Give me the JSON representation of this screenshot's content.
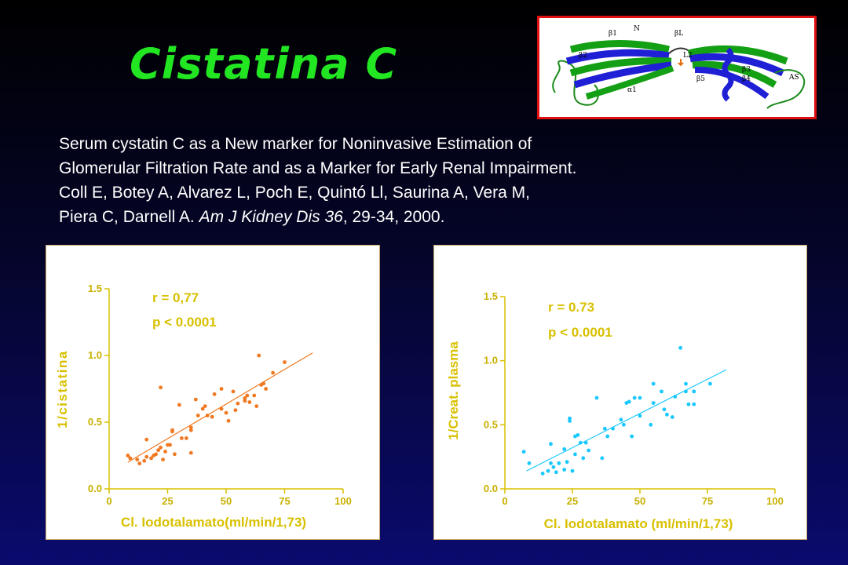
{
  "slide": {
    "title": "Cistatina C",
    "protein_labels": [
      "N",
      "β1",
      "βL",
      "β2",
      "L2",
      "β3",
      "β4",
      "β5",
      "α1",
      "AS"
    ],
    "citation": {
      "line1": "Serum cystatin C as a New marker for Noninvasive Estimation of",
      "line2": "Glomerular Filtration Rate and as a Marker for Early Renal Impairment.",
      "line3": "Coll E, Botey A, Alvarez L, Poch E, Quintó Ll, Saurina A, Vera M,",
      "line4_pre": "Piera C, Darnell A. ",
      "line4_journal": "Am J  Kidney Dis 36",
      "line4_post": ", 29-34, 2000."
    }
  },
  "colors": {
    "title": "#22e622",
    "protein_border": "#e01010",
    "left_series": "#f07820",
    "right_series": "#18c8ff"
  },
  "chart_data": [
    {
      "type": "scatter",
      "xlabel": "Cl. Iodotalamato(ml/min/1,73)",
      "ylabel": "1/cistatina",
      "annotations": [
        "r = 0,77",
        "p < 0.0001"
      ],
      "xlim": [
        0,
        100
      ],
      "ylim": [
        0,
        1.5
      ],
      "x_ticks": [
        "0",
        "25",
        "50",
        "75",
        "100"
      ],
      "y_ticks": [
        "0.0",
        "0.5",
        "1.0",
        "1.5"
      ],
      "grid": false,
      "trendline": {
        "x": [
          8,
          87
        ],
        "y": [
          0.2,
          1.02
        ]
      },
      "points": [
        [
          8,
          0.25
        ],
        [
          9,
          0.23
        ],
        [
          12,
          0.22
        ],
        [
          13,
          0.19
        ],
        [
          15,
          0.21
        ],
        [
          16,
          0.37
        ],
        [
          16,
          0.24
        ],
        [
          18,
          0.23
        ],
        [
          19,
          0.25
        ],
        [
          20,
          0.26
        ],
        [
          21,
          0.29
        ],
        [
          22,
          0.76
        ],
        [
          22,
          0.31
        ],
        [
          23,
          0.22
        ],
        [
          24,
          0.28
        ],
        [
          25,
          0.33
        ],
        [
          26,
          0.33
        ],
        [
          27,
          0.43
        ],
        [
          27,
          0.44
        ],
        [
          28,
          0.26
        ],
        [
          30,
          0.63
        ],
        [
          31,
          0.38
        ],
        [
          33,
          0.38
        ],
        [
          35,
          0.27
        ],
        [
          35,
          0.44
        ],
        [
          35,
          0.46
        ],
        [
          37,
          0.67
        ],
        [
          38,
          0.55
        ],
        [
          40,
          0.6
        ],
        [
          41,
          0.62
        ],
        [
          42,
          0.55
        ],
        [
          44,
          0.54
        ],
        [
          45,
          0.71
        ],
        [
          48,
          0.75
        ],
        [
          48,
          0.6
        ],
        [
          50,
          0.57
        ],
        [
          51,
          0.51
        ],
        [
          53,
          0.73
        ],
        [
          54,
          0.59
        ],
        [
          55,
          0.64
        ],
        [
          58,
          0.66
        ],
        [
          58,
          0.68
        ],
        [
          59,
          0.7
        ],
        [
          60,
          0.65
        ],
        [
          62,
          0.7
        ],
        [
          63,
          0.62
        ],
        [
          64,
          1.0
        ],
        [
          65,
          0.78
        ],
        [
          66,
          0.79
        ],
        [
          67,
          0.75
        ],
        [
          70,
          0.87
        ],
        [
          75,
          0.95
        ]
      ]
    },
    {
      "type": "scatter",
      "xlabel": "Cl. Iodotalamato (ml/min/1,73)",
      "ylabel": "1/Creat. plasma",
      "annotations": [
        "r = 0.73",
        "p < 0.0001"
      ],
      "xlim": [
        0,
        100
      ],
      "ylim": [
        0,
        1.5
      ],
      "x_ticks": [
        "0",
        "25",
        "50",
        "75",
        "100"
      ],
      "y_ticks": [
        "0.0",
        "0.5",
        "1.0",
        "1.5"
      ],
      "grid": false,
      "trendline": {
        "x": [
          8,
          82
        ],
        "y": [
          0.14,
          0.93
        ]
      },
      "points": [
        [
          7,
          0.29
        ],
        [
          9,
          0.2
        ],
        [
          14,
          0.12
        ],
        [
          16,
          0.14
        ],
        [
          17,
          0.2
        ],
        [
          17,
          0.35
        ],
        [
          18,
          0.17
        ],
        [
          19,
          0.13
        ],
        [
          20,
          0.2
        ],
        [
          22,
          0.15
        ],
        [
          22,
          0.31
        ],
        [
          23,
          0.21
        ],
        [
          24,
          0.53
        ],
        [
          24,
          0.55
        ],
        [
          25,
          0.14
        ],
        [
          26,
          0.27
        ],
        [
          26,
          0.41
        ],
        [
          27,
          0.42
        ],
        [
          28,
          0.36
        ],
        [
          29,
          0.24
        ],
        [
          30,
          0.36
        ],
        [
          31,
          0.3
        ],
        [
          34,
          0.71
        ],
        [
          36,
          0.24
        ],
        [
          37,
          0.47
        ],
        [
          38,
          0.41
        ],
        [
          40,
          0.47
        ],
        [
          43,
          0.54
        ],
        [
          44,
          0.5
        ],
        [
          45,
          0.67
        ],
        [
          46,
          0.68
        ],
        [
          47,
          0.41
        ],
        [
          48,
          0.71
        ],
        [
          50,
          0.71
        ],
        [
          50,
          0.57
        ],
        [
          54,
          0.5
        ],
        [
          55,
          0.67
        ],
        [
          55,
          0.82
        ],
        [
          58,
          0.76
        ],
        [
          59,
          0.62
        ],
        [
          60,
          0.58
        ],
        [
          62,
          0.56
        ],
        [
          63,
          0.72
        ],
        [
          65,
          1.1
        ],
        [
          67,
          0.82
        ],
        [
          67,
          0.76
        ],
        [
          68,
          0.66
        ],
        [
          70,
          0.66
        ],
        [
          70,
          0.76
        ],
        [
          76,
          0.82
        ]
      ]
    }
  ]
}
